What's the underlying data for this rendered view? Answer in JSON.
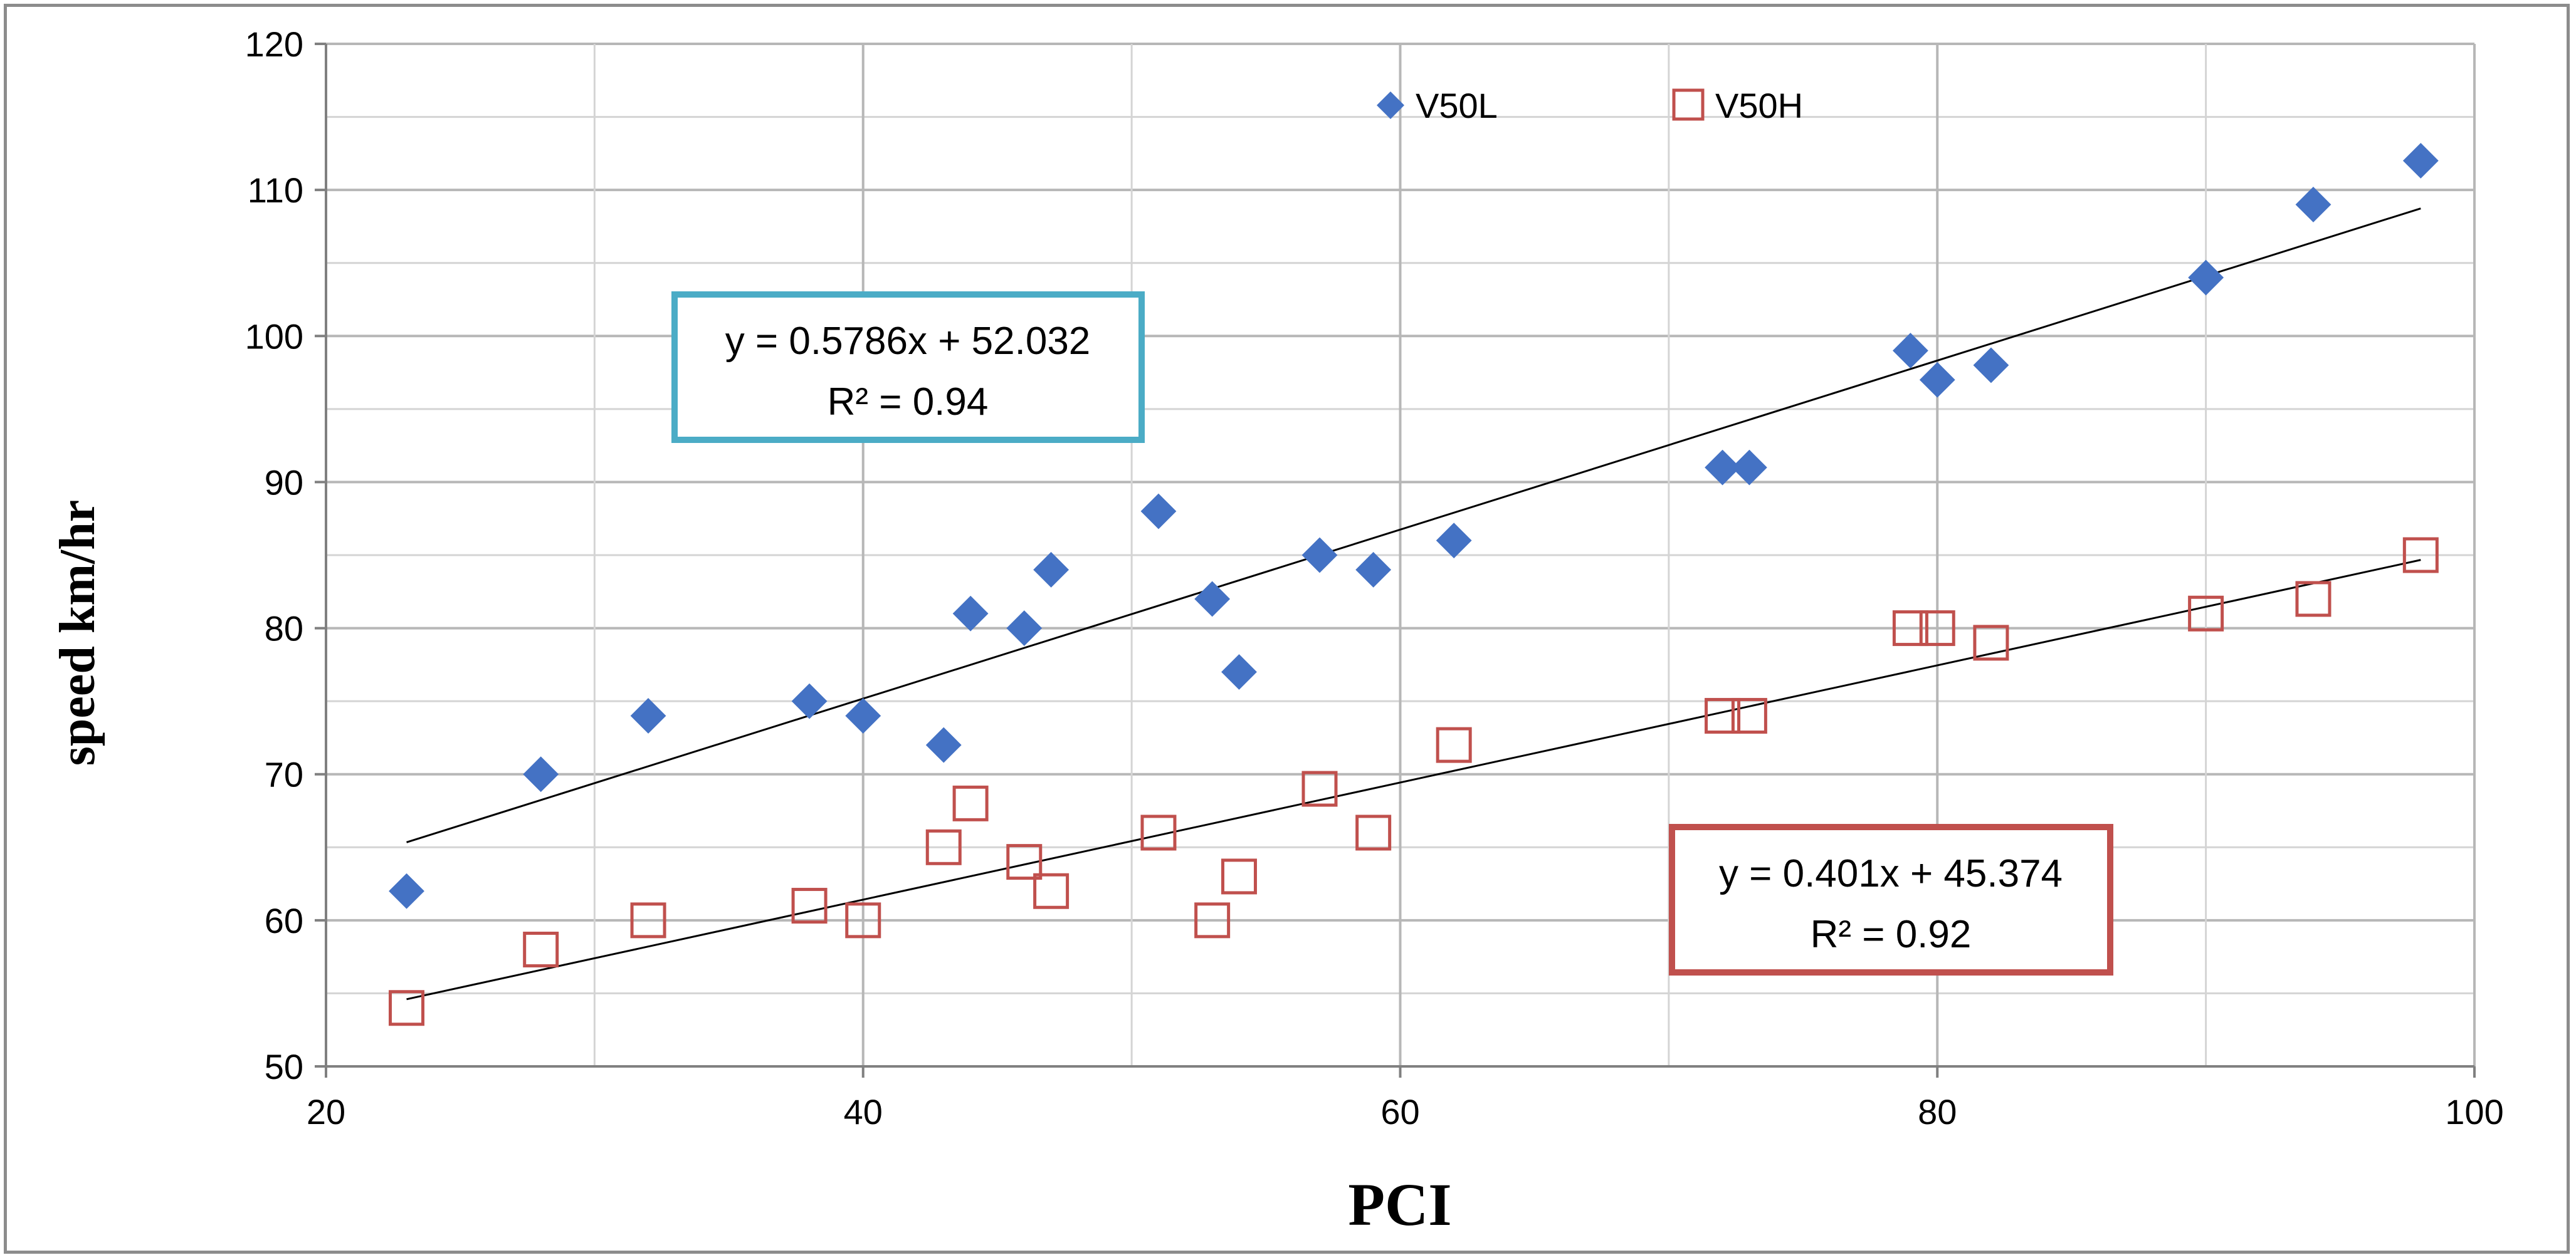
{
  "chart_data": {
    "type": "scatter",
    "title": "",
    "xlabel": "PCI",
    "ylabel": "speed km/hr",
    "xlim": [
      20,
      100
    ],
    "ylim": [
      50,
      120
    ],
    "x_ticks": [
      "20",
      "40",
      "60",
      "80",
      "100"
    ],
    "y_ticks": [
      "50",
      "60",
      "70",
      "80",
      "90",
      "100",
      "110",
      "120"
    ],
    "grid": true,
    "legend_position": "top-center",
    "series": [
      {
        "name": "V50L",
        "marker": "diamond",
        "color": "#4472c4",
        "points": [
          [
            23,
            62
          ],
          [
            28,
            70
          ],
          [
            32,
            74
          ],
          [
            38,
            75
          ],
          [
            40,
            74
          ],
          [
            43,
            72
          ],
          [
            44,
            81
          ],
          [
            46,
            80
          ],
          [
            47,
            84
          ],
          [
            51,
            88
          ],
          [
            53,
            82
          ],
          [
            54,
            77
          ],
          [
            57,
            85
          ],
          [
            59,
            84
          ],
          [
            62,
            86
          ],
          [
            72,
            91
          ],
          [
            73,
            91
          ],
          [
            79,
            99
          ],
          [
            80,
            97
          ],
          [
            82,
            98
          ],
          [
            90,
            104
          ],
          [
            94,
            109
          ],
          [
            98,
            112
          ]
        ],
        "trendline": {
          "slope": 0.5786,
          "intercept": 52.032,
          "x_range": [
            23,
            98
          ],
          "equation": "y = 0.5786x + 52.032",
          "r2": "R² = 0.94",
          "box_color": "#4bacc6"
        }
      },
      {
        "name": "V50H",
        "marker": "square-open",
        "color": "#c0504d",
        "points": [
          [
            23,
            54
          ],
          [
            28,
            58
          ],
          [
            32,
            60
          ],
          [
            38,
            61
          ],
          [
            40,
            60
          ],
          [
            43,
            65
          ],
          [
            44,
            68
          ],
          [
            46,
            64
          ],
          [
            47,
            62
          ],
          [
            51,
            66
          ],
          [
            53,
            60
          ],
          [
            54,
            63
          ],
          [
            57,
            69
          ],
          [
            59,
            66
          ],
          [
            62,
            72
          ],
          [
            72,
            74
          ],
          [
            73,
            74
          ],
          [
            79,
            80
          ],
          [
            80,
            80
          ],
          [
            82,
            79
          ],
          [
            90,
            81
          ],
          [
            94,
            82
          ],
          [
            98,
            85
          ]
        ],
        "trendline": {
          "slope": 0.401,
          "intercept": 45.374,
          "x_range": [
            23,
            98
          ],
          "equation": "y = 0.401x + 45.374",
          "r2": "R² = 0.92",
          "box_color": "#c0504d"
        }
      }
    ]
  }
}
